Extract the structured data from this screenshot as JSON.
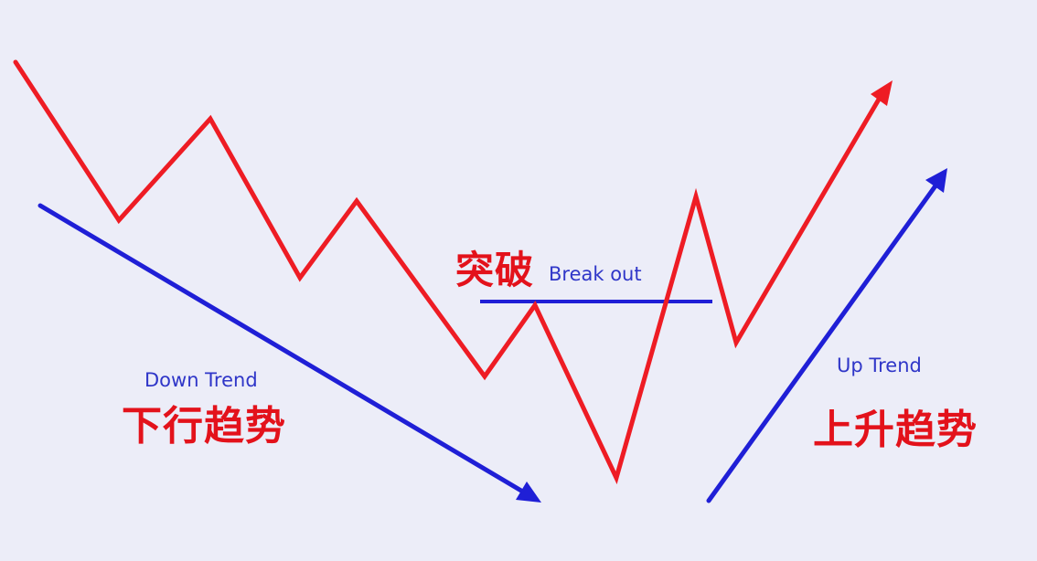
{
  "labels": {
    "breakout_cn": "突破",
    "breakout_en": "Break out",
    "down_trend_en": "Down Trend",
    "down_trend_cn": "下行趋势",
    "up_trend_en": "Up Trend",
    "up_trend_cn": "上升趋势"
  },
  "colors": {
    "background": "#ecedf8",
    "price_line": "#ee1c24",
    "trend_arrows": "#1f1fd6",
    "breakout_level": "#1f1fd6",
    "english_labels": "#2f36c8",
    "chinese_labels": "#e3121b"
  },
  "icons": {
    "down_trend_arrowhead": "arrowhead-down-right",
    "price_arrowhead": "arrowhead-up-right",
    "up_trend_arrowhead": "arrowhead-up-right"
  }
}
